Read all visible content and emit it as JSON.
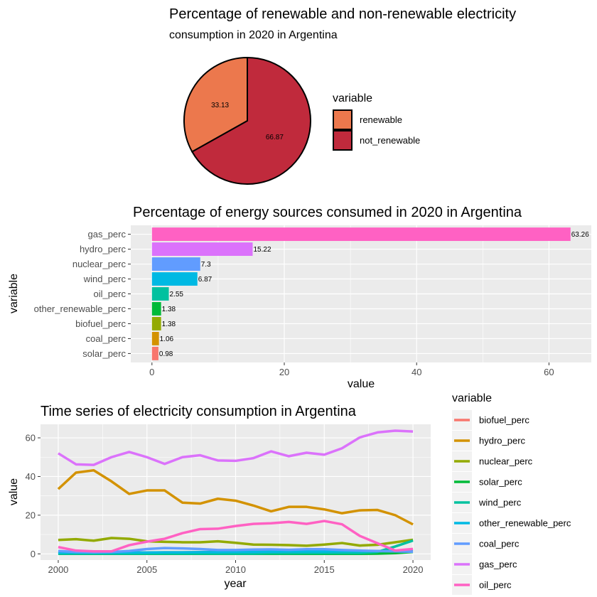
{
  "chart_data": [
    {
      "type": "pie",
      "title": "Percentage of renewable and non-renewable electricity",
      "subtitle": "consumption in 2020 in Argentina",
      "legend_title": "variable",
      "legend_position": "right",
      "slices": [
        {
          "label": "renewable",
          "value": 33.13,
          "color": "#ec784d"
        },
        {
          "label": "not_renewable",
          "value": 66.87,
          "color": "#c02a3c"
        }
      ]
    },
    {
      "type": "bar",
      "orientation": "horizontal",
      "title": "Percentage of energy sources consumed in 2020 in Argentina",
      "xlabel": "value",
      "ylabel": "variable",
      "xlim": [
        -3.2,
        66.4
      ],
      "xticks": [
        0,
        20,
        40,
        60
      ],
      "grid": true,
      "categories": [
        "solar_perc",
        "coal_perc",
        "biofuel_perc",
        "other_renewable_perc",
        "oil_perc",
        "wind_perc",
        "nuclear_perc",
        "hydro_perc",
        "gas_perc"
      ],
      "values": [
        0.98,
        1.06,
        1.38,
        1.38,
        2.55,
        6.87,
        7.3,
        15.22,
        63.26
      ],
      "labels": [
        "0.98",
        "1.06",
        "1.38",
        "1.38",
        "2.55",
        "6.87",
        "7.3",
        "15.22",
        "63.26"
      ],
      "colors": [
        "#f8766d",
        "#d39200",
        "#93aa00",
        "#00ba38",
        "#00c19f",
        "#00b9e3",
        "#619cff",
        "#db72fb",
        "#ff61c3"
      ]
    },
    {
      "type": "line",
      "title": "Time series of electricity consumption in Argentina",
      "xlabel": "year",
      "ylabel": "value",
      "xlim": [
        1999,
        2021
      ],
      "ylim": [
        -3.2,
        67
      ],
      "xticks": [
        2000,
        2005,
        2010,
        2015,
        2020
      ],
      "yticks": [
        0,
        20,
        40,
        60
      ],
      "grid": true,
      "legend_title": "variable",
      "legend_position": "right",
      "x": [
        2000,
        2001,
        2002,
        2003,
        2004,
        2005,
        2006,
        2007,
        2008,
        2009,
        2010,
        2011,
        2012,
        2013,
        2014,
        2015,
        2016,
        2017,
        2018,
        2019,
        2020
      ],
      "series": [
        {
          "name": "biofuel_perc",
          "color": "#f8766d",
          "values": [
            0.8,
            0.7,
            0.6,
            0.6,
            0.7,
            0.7,
            0.8,
            0.8,
            0.9,
            1.0,
            1.0,
            1.1,
            1.1,
            1.1,
            1.2,
            1.3,
            1.3,
            1.3,
            1.4,
            1.4,
            1.38
          ]
        },
        {
          "name": "hydro_perc",
          "color": "#d39200",
          "values": [
            33.5,
            42.0,
            43.2,
            37.5,
            31.0,
            32.8,
            32.8,
            26.5,
            26.0,
            28.5,
            27.5,
            25.0,
            22.0,
            24.3,
            24.3,
            23.0,
            21.0,
            22.5,
            22.7,
            20.0,
            15.22
          ]
        },
        {
          "name": "nuclear_perc",
          "color": "#93aa00",
          "values": [
            7.2,
            7.6,
            6.8,
            8.2,
            7.8,
            6.5,
            6.2,
            6.0,
            6.0,
            6.5,
            5.7,
            4.8,
            4.7,
            4.5,
            4.2,
            4.8,
            5.6,
            4.3,
            4.7,
            6.0,
            7.3
          ]
        },
        {
          "name": "solar_perc",
          "color": "#00ba38",
          "values": [
            0,
            0,
            0,
            0,
            0,
            0,
            0,
            0,
            0,
            0,
            0,
            0,
            0,
            0,
            0,
            0,
            0,
            0,
            0.1,
            0.4,
            0.98
          ]
        },
        {
          "name": "wind_perc",
          "color": "#00c19f",
          "values": [
            0.1,
            0.1,
            0.1,
            0.1,
            0.1,
            0.1,
            0.1,
            0.1,
            0.1,
            0.1,
            0.1,
            0.1,
            0.3,
            0.3,
            0.4,
            0.4,
            0.4,
            0.4,
            1.0,
            3.8,
            6.87
          ]
        },
        {
          "name": "other_renewable_perc",
          "color": "#00b9e3",
          "values": [
            0.6,
            0.6,
            0.6,
            0.6,
            0.7,
            0.7,
            0.8,
            0.8,
            0.9,
            0.9,
            1.0,
            1.0,
            1.1,
            1.2,
            1.2,
            1.2,
            1.3,
            1.3,
            1.4,
            1.4,
            1.38
          ]
        },
        {
          "name": "coal_perc",
          "color": "#619cff",
          "values": [
            1.5,
            1.0,
            0.8,
            1.0,
            1.5,
            2.5,
            3.0,
            2.8,
            2.5,
            2.0,
            2.0,
            2.2,
            2.3,
            2.1,
            2.4,
            2.4,
            2.0,
            1.7,
            1.5,
            1.3,
            1.06
          ]
        },
        {
          "name": "gas_perc",
          "color": "#db72fb",
          "values": [
            52.0,
            46.3,
            46.0,
            50.0,
            52.7,
            50.0,
            46.5,
            50.0,
            51.0,
            48.3,
            48.1,
            49.5,
            53.0,
            50.5,
            52.3,
            51.3,
            54.6,
            60.2,
            62.8,
            63.7,
            63.26
          ]
        },
        {
          "name": "oil_perc",
          "color": "#ff61c3",
          "values": [
            3.5,
            1.7,
            1.3,
            1.3,
            4.5,
            6.3,
            7.8,
            10.7,
            12.8,
            13.0,
            14.4,
            15.5,
            15.8,
            16.5,
            15.5,
            17.0,
            15.3,
            9.3,
            5.5,
            1.7,
            2.55
          ]
        }
      ]
    }
  ]
}
